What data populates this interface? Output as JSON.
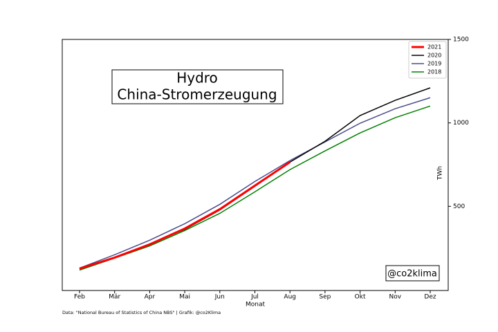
{
  "chart_data": {
    "type": "line",
    "title": "Hydro",
    "subtitle": "China-Stromerzeugung",
    "x_label": "Monat",
    "y_label": "TWh",
    "annotation": "@co2klima",
    "source": "Data: \"National Bureau of Statistics of China NBS\" | Grafik: @co2Klima",
    "categories": [
      "Feb",
      "Mär",
      "Apr",
      "Mai",
      "Jun",
      "Jul",
      "Aug",
      "Sep",
      "Okt",
      "Nov",
      "Dez"
    ],
    "series": [
      {
        "name": "2021",
        "color": "#ff0000",
        "width": 3,
        "values": [
          127,
          193,
          272,
          367,
          483,
          624,
          765,
          null,
          null,
          null,
          null
        ]
      },
      {
        "name": "2020",
        "color": "#000000",
        "width": 1.5,
        "values": [
          125,
          193,
          275,
          362,
          478,
          620,
          765,
          890,
          1044,
          1135,
          1210
        ]
      },
      {
        "name": "2019",
        "color": "#4b4b8c",
        "width": 1.5,
        "values": [
          130,
          210,
          297,
          396,
          512,
          649,
          774,
          886,
          998,
          1085,
          1151
        ]
      },
      {
        "name": "2018",
        "color": "#008000",
        "width": 1.5,
        "values": [
          118,
          190,
          263,
          355,
          458,
          587,
          720,
          832,
          940,
          1031,
          1101
        ]
      }
    ],
    "ylim": [
      0,
      1500
    ],
    "yticks": [
      500,
      1000,
      1500
    ],
    "legend": "upper right"
  }
}
